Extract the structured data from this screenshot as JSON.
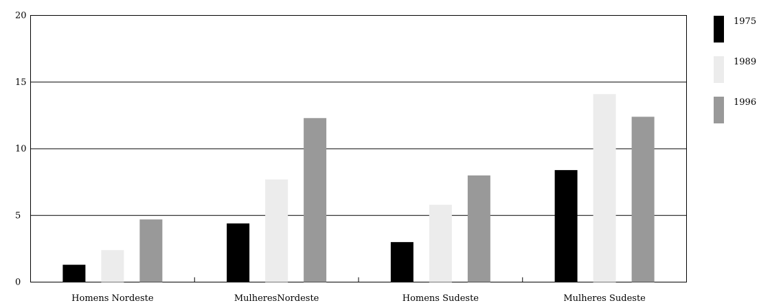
{
  "chart_data": {
    "type": "bar",
    "categories": [
      "Homens Nordeste",
      "MulheresNordeste",
      "Homens Sudeste",
      "Mulheres Sudeste"
    ],
    "series": [
      {
        "name": "1975",
        "values": [
          1.3,
          4.4,
          3.0,
          8.4
        ],
        "color": "#000000"
      },
      {
        "name": "1989",
        "values": [
          2.4,
          7.7,
          5.8,
          14.1
        ],
        "color": "#ececec"
      },
      {
        "name": "1996",
        "values": [
          4.7,
          12.3,
          8.0,
          12.4
        ],
        "color": "#999999"
      }
    ],
    "yticks": [
      "0",
      "5",
      "10",
      "15",
      "20"
    ],
    "ylim": [
      0,
      20
    ],
    "grid": true,
    "legend_position": "right"
  }
}
